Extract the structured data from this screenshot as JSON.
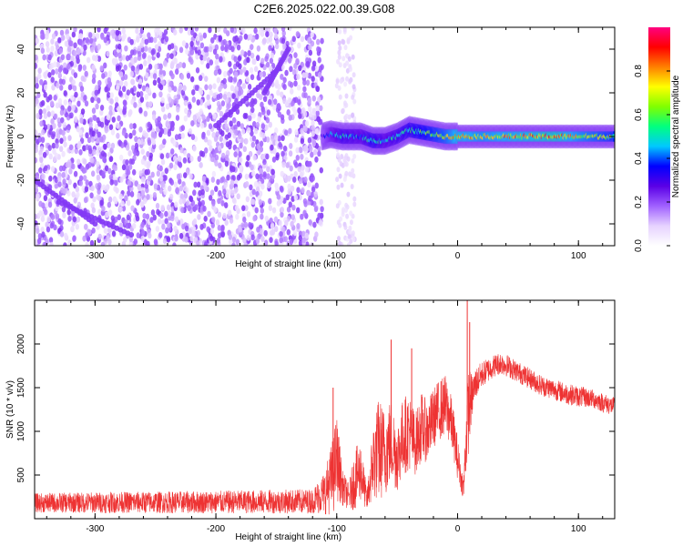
{
  "title": "C2E6.2025.022.00.39.G08",
  "chart_data": [
    {
      "type": "heatmap",
      "name": "spectrogram",
      "xlabel": "Height of straight line (km)",
      "ylabel": "Frequency (Hz)",
      "xlim": [
        -350,
        130
      ],
      "ylim": [
        -50,
        50
      ],
      "xticks": [
        -300,
        -200,
        -100,
        0,
        100
      ],
      "yticks": [
        -40,
        -20,
        0,
        20,
        40
      ],
      "colorbar": {
        "label": "Normalized spectral amplitude",
        "range": [
          0,
          1
        ],
        "ticks": [
          0.0,
          0.2,
          0.4,
          0.6,
          0.8
        ],
        "tick_labels": [
          "0.0",
          "0.2",
          "0.4",
          "0.6",
          "0.8"
        ],
        "colormap": [
          "#ffffff",
          "#e6d2ff",
          "#a060ff",
          "#5a00e6",
          "#0000ff",
          "#00c8ff",
          "#00ff80",
          "#80ff00",
          "#ffff00",
          "#ff8000",
          "#ff0000",
          "#ff0080"
        ]
      },
      "features": {
        "noise_region_x": [
          -350,
          -112
        ],
        "noise_band_x": [
          -100,
          -85
        ],
        "ridge": {
          "x": [
            -112,
            -105,
            -95,
            -80,
            -70,
            -60,
            -50,
            -40,
            -30,
            -20,
            -10,
            0,
            20,
            50,
            80,
            100,
            130
          ],
          "y": [
            0,
            1,
            0,
            0,
            -2,
            -2,
            0,
            3,
            2,
            1,
            0,
            0,
            0,
            0,
            0,
            0,
            0
          ],
          "amplitude": [
            0.3,
            0.45,
            0.55,
            0.5,
            0.6,
            0.5,
            0.55,
            0.6,
            0.65,
            0.7,
            0.75,
            0.85,
            0.8,
            0.85,
            0.9,
            0.8,
            0.7
          ]
        }
      }
    },
    {
      "type": "line",
      "name": "snr",
      "xlabel": "Height of straight line (km)",
      "ylabel": "SNR (10 * v/v)",
      "xlim": [
        -350,
        130
      ],
      "ylim": [
        0,
        2500
      ],
      "xticks": [
        -300,
        -200,
        -100,
        0,
        100
      ],
      "yticks": [
        500,
        1000,
        1500,
        2000
      ],
      "color": "#ee3333",
      "envelope": {
        "x": [
          -350,
          -300,
          -200,
          -120,
          -110,
          -103,
          -100,
          -95,
          -90,
          -85,
          -80,
          -75,
          -70,
          -65,
          -60,
          -55,
          -50,
          -45,
          -40,
          -35,
          -30,
          -25,
          -20,
          -15,
          -10,
          -5,
          0,
          3,
          5,
          7,
          9,
          12,
          15,
          20,
          25,
          30,
          35,
          40,
          50,
          60,
          70,
          80,
          90,
          100,
          110,
          120,
          130
        ],
        "base": [
          180,
          185,
          190,
          200,
          300,
          500,
          700,
          350,
          250,
          450,
          550,
          200,
          650,
          800,
          750,
          900,
          700,
          950,
          1000,
          850,
          1050,
          1000,
          1150,
          1250,
          1300,
          1100,
          700,
          450,
          350,
          900,
          1250,
          1400,
          1550,
          1650,
          1700,
          1750,
          1780,
          1760,
          1680,
          1600,
          1520,
          1480,
          1430,
          1400,
          1380,
          1330,
          1280
        ],
        "spread": [
          110,
          120,
          130,
          140,
          250,
          450,
          500,
          200,
          150,
          350,
          350,
          120,
          450,
          600,
          500,
          500,
          400,
          450,
          450,
          350,
          400,
          350,
          350,
          350,
          350,
          300,
          250,
          150,
          120,
          400,
          500,
          250,
          180,
          150,
          140,
          130,
          130,
          130,
          120,
          120,
          120,
          120,
          120,
          120,
          110,
          110,
          110
        ]
      },
      "spikes": [
        {
          "x": -103,
          "y": 1500
        },
        {
          "x": -55,
          "y": 2050
        },
        {
          "x": -38,
          "y": 1950
        },
        {
          "x": 8,
          "y": 2500
        },
        {
          "x": 10,
          "y": 2250
        }
      ]
    }
  ]
}
